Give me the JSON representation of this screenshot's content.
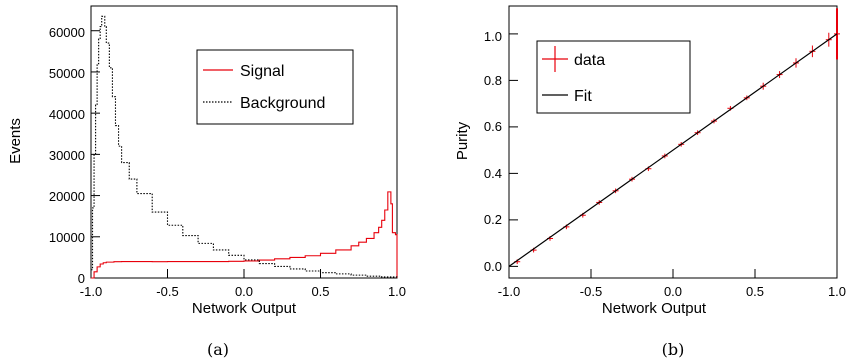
{
  "chart_data": [
    {
      "type": "line",
      "caption": "(a)",
      "xlabel": "Network Output",
      "ylabel": "Events",
      "xlim": [
        -1.0,
        1.0
      ],
      "ylim": [
        0,
        66000
      ],
      "x_tick_labels": [
        "-1.0",
        "-0.5",
        "0.0",
        "0.5",
        "1.0"
      ],
      "x_tick_values": [
        -1.0,
        -0.5,
        0.0,
        0.5,
        1.0
      ],
      "y_tick_labels": [
        "0",
        "10000",
        "20000",
        "30000",
        "40000",
        "50000",
        "60000"
      ],
      "y_tick_values": [
        0,
        10000,
        20000,
        30000,
        40000,
        50000,
        60000
      ],
      "legend": {
        "position": "top-right",
        "entries": [
          "Signal",
          "Background"
        ]
      },
      "colors": {
        "Signal": "#e8000b",
        "Background": "#000000"
      },
      "series": [
        {
          "name": "Signal",
          "style": "solid-step",
          "points": [
            [
              -1.0,
              0
            ],
            [
              -0.98,
              1500
            ],
            [
              -0.96,
              2700
            ],
            [
              -0.94,
              3400
            ],
            [
              -0.92,
              3700
            ],
            [
              -0.9,
              3850
            ],
            [
              -0.85,
              3950
            ],
            [
              -0.8,
              4000
            ],
            [
              -0.7,
              4000
            ],
            [
              -0.6,
              3950
            ],
            [
              -0.5,
              4000
            ],
            [
              -0.4,
              4000
            ],
            [
              -0.3,
              4000
            ],
            [
              -0.2,
              4000
            ],
            [
              -0.1,
              4050
            ],
            [
              0.0,
              4150
            ],
            [
              0.1,
              4350
            ],
            [
              0.2,
              4650
            ],
            [
              0.3,
              5000
            ],
            [
              0.4,
              5400
            ],
            [
              0.5,
              6000
            ],
            [
              0.6,
              6800
            ],
            [
              0.7,
              7800
            ],
            [
              0.75,
              8700
            ],
            [
              0.8,
              9600
            ],
            [
              0.85,
              11000
            ],
            [
              0.88,
              12300
            ],
            [
              0.9,
              14000
            ],
            [
              0.92,
              16500
            ],
            [
              0.94,
              20900
            ],
            [
              0.96,
              18000
            ],
            [
              0.97,
              11000
            ],
            [
              0.99,
              10500
            ],
            [
              1.0,
              0
            ]
          ]
        },
        {
          "name": "Background",
          "style": "dotted-step",
          "points": [
            [
              -1.0,
              2000
            ],
            [
              -0.99,
              17000
            ],
            [
              -0.98,
              30000
            ],
            [
              -0.97,
              42000
            ],
            [
              -0.96,
              52000
            ],
            [
              -0.95,
              58000
            ],
            [
              -0.94,
              61000
            ],
            [
              -0.93,
              63500
            ],
            [
              -0.92,
              63500
            ],
            [
              -0.91,
              61000
            ],
            [
              -0.9,
              57000
            ],
            [
              -0.88,
              51000
            ],
            [
              -0.86,
              44000
            ],
            [
              -0.84,
              37000
            ],
            [
              -0.82,
              32000
            ],
            [
              -0.8,
              28000
            ],
            [
              -0.75,
              24000
            ],
            [
              -0.7,
              20500
            ],
            [
              -0.6,
              16000
            ],
            [
              -0.5,
              12800
            ],
            [
              -0.4,
              10300
            ],
            [
              -0.3,
              8400
            ],
            [
              -0.2,
              6800
            ],
            [
              -0.1,
              5500
            ],
            [
              0.0,
              4400
            ],
            [
              0.1,
              3500
            ],
            [
              0.2,
              2800
            ],
            [
              0.3,
              2200
            ],
            [
              0.4,
              1700
            ],
            [
              0.5,
              1300
            ],
            [
              0.6,
              1000
            ],
            [
              0.7,
              700
            ],
            [
              0.8,
              450
            ],
            [
              0.9,
              250
            ],
            [
              1.0,
              0
            ]
          ]
        }
      ]
    },
    {
      "type": "line",
      "caption": "(b)",
      "xlabel": "Network Output",
      "ylabel": "Purity",
      "xlim": [
        -1.0,
        1.0
      ],
      "ylim": [
        -0.05,
        1.12
      ],
      "x_tick_labels": [
        "-1.0",
        "-0.5",
        "0.0",
        "0.5",
        "1.0"
      ],
      "x_tick_values": [
        -1.0,
        -0.5,
        0.0,
        0.5,
        1.0
      ],
      "y_tick_labels": [
        "0.0",
        "0.2",
        "0.4",
        "0.6",
        "0.8",
        "1.0"
      ],
      "y_tick_values": [
        0.0,
        0.2,
        0.4,
        0.6,
        0.8,
        1.0
      ],
      "legend": {
        "position": "top-left",
        "entries": [
          "data",
          "Fit"
        ]
      },
      "colors": {
        "data": "#e8000b",
        "Fit": "#000000"
      },
      "series": [
        {
          "name": "data",
          "style": "error-bars",
          "x": [
            -0.95,
            -0.85,
            -0.75,
            -0.65,
            -0.55,
            -0.45,
            -0.35,
            -0.25,
            -0.15,
            -0.05,
            0.05,
            0.15,
            0.25,
            0.35,
            0.45,
            0.55,
            0.65,
            0.75,
            0.85,
            0.95,
            1.0
          ],
          "y": [
            0.02,
            0.07,
            0.12,
            0.17,
            0.22,
            0.275,
            0.325,
            0.375,
            0.42,
            0.475,
            0.525,
            0.575,
            0.625,
            0.68,
            0.725,
            0.775,
            0.825,
            0.875,
            0.925,
            0.975,
            1.0
          ],
          "yerr": [
            0.01,
            0.01,
            0.01,
            0.01,
            0.01,
            0.01,
            0.01,
            0.01,
            0.01,
            0.01,
            0.01,
            0.01,
            0.01,
            0.01,
            0.01,
            0.015,
            0.015,
            0.02,
            0.025,
            0.03,
            0.11
          ]
        },
        {
          "name": "Fit",
          "style": "solid-line",
          "x": [
            -1.0,
            1.0
          ],
          "y": [
            0.0,
            1.0
          ]
        }
      ]
    }
  ]
}
